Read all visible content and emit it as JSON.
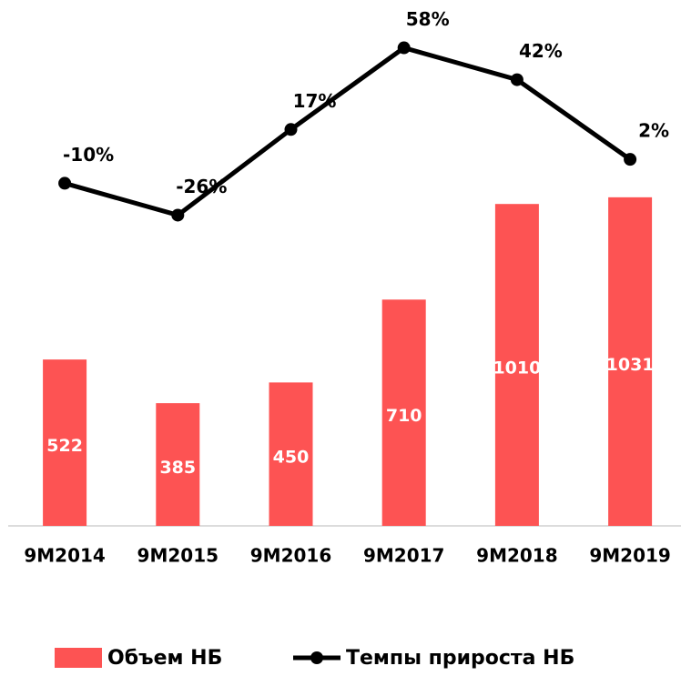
{
  "chart_data": {
    "type": "bar_line",
    "categories": [
      "9M2014",
      "9M2015",
      "9M2016",
      "9M2017",
      "9M2018",
      "9M2019"
    ],
    "series": [
      {
        "name": "Объем НБ",
        "type": "bar",
        "color": "#fd5353",
        "values": [
          522,
          385,
          450,
          710,
          1010,
          1031
        ]
      },
      {
        "name": "Темпы прироста НБ",
        "type": "line",
        "axis": "y2",
        "color": "#000000",
        "values": [
          -10,
          -26,
          17,
          58,
          42,
          2
        ],
        "value_labels": [
          "-10%",
          "-26%",
          "17%",
          "58%",
          "42%",
          "2%"
        ]
      }
    ],
    "ylim": [
      0,
      1650
    ],
    "y2lim": [
      -182,
      82
    ]
  }
}
